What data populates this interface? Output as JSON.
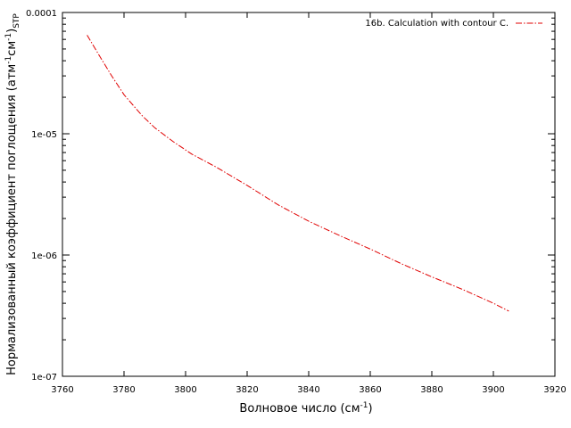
{
  "chart_data": {
    "type": "line",
    "xlabel": {
      "base": "Волновое число (см",
      "sup": "-1",
      "tail": ")"
    },
    "ylabel": {
      "part1": "Нормализованный коэффициент поглощения (атм",
      "sup1": "-1",
      "part2": "см",
      "sup2": "-1",
      "part3": ")",
      "sub": "STP"
    },
    "xlim": [
      3760,
      3920
    ],
    "ylim": [
      1e-07,
      0.0001
    ],
    "yscale": "log",
    "x_ticks": [
      3760,
      3780,
      3800,
      3820,
      3840,
      3860,
      3880,
      3900,
      3920
    ],
    "y_ticks": [
      {
        "value": 1e-07,
        "label": "1e-07"
      },
      {
        "value": 1e-06,
        "label": "1e-06"
      },
      {
        "value": 1e-05,
        "label": "1e-05"
      },
      {
        "value": 0.0001,
        "label": "0.0001"
      }
    ],
    "grid": false,
    "legend_position": "top-right",
    "series": [
      {
        "name": "16b. Calculation with contour C.",
        "color": "#e00000",
        "linestyle": "dash-dot",
        "x": [
          3768,
          3772,
          3776,
          3780,
          3784,
          3786,
          3790,
          3796,
          3802,
          3810,
          3820,
          3830,
          3840,
          3850,
          3860,
          3870,
          3880,
          3890,
          3900,
          3905
        ],
        "y": [
          6.5e-05,
          4.4e-05,
          3e-05,
          2.1e-05,
          1.6e-05,
          1.4e-05,
          1.12e-05,
          8.6e-06,
          6.8e-06,
          5.3e-06,
          3.75e-06,
          2.6e-06,
          1.9e-06,
          1.45e-06,
          1.12e-06,
          8.5e-07,
          6.6e-07,
          5.2e-07,
          4e-07,
          3.45e-07
        ]
      }
    ]
  }
}
